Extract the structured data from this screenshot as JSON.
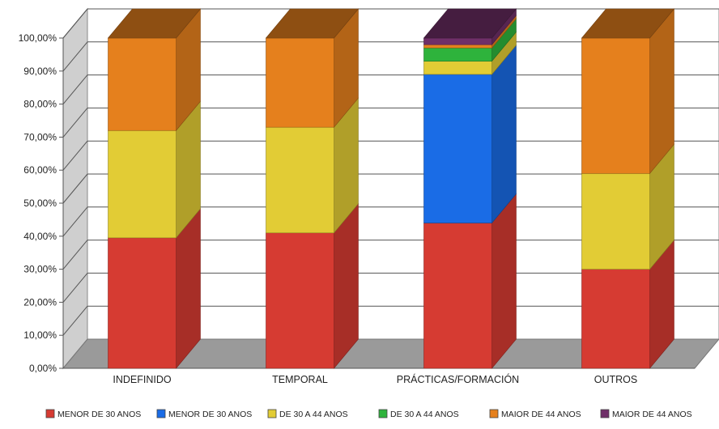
{
  "chart_data": {
    "type": "bar",
    "stacked": true,
    "three_d": true,
    "categories": [
      "INDEFINIDO",
      "TEMPORAL",
      "PRÁCTICAS/FORMACIÓN",
      "OUTROS"
    ],
    "series": [
      {
        "name": "MENOR DE 30 ANOS",
        "color": "#d63b32",
        "values": [
          39.5,
          41.0,
          44.0,
          30.0
        ]
      },
      {
        "name": "MENOR DE 30 ANOS",
        "color": "#1a6ce6",
        "values": [
          0,
          0,
          45.0,
          0
        ]
      },
      {
        "name": "DE 30 A 44 ANOS",
        "color": "#e2cc35",
        "values": [
          32.5,
          32.0,
          4.0,
          29.0
        ]
      },
      {
        "name": "DE 30 A 44 ANOS",
        "color": "#2eb33c",
        "values": [
          0,
          0,
          4.0,
          0
        ]
      },
      {
        "name": "MAIOR DE 44 ANOS",
        "color": "#e5801d",
        "values": [
          28.0,
          27.0,
          1.0,
          41.0
        ]
      },
      {
        "name": "MAIOR DE 44 ANOS",
        "color": "#6f2f68",
        "values": [
          0,
          0,
          2.0,
          0
        ]
      }
    ],
    "y_ticks": [
      "0,00%",
      "10,00%",
      "20,00%",
      "30,00%",
      "40,00%",
      "50,00%",
      "60,00%",
      "70,00%",
      "80,00%",
      "90,00%",
      "100,00%"
    ],
    "ylim": [
      0,
      100
    ],
    "grid": true,
    "legend_position": "bottom"
  }
}
